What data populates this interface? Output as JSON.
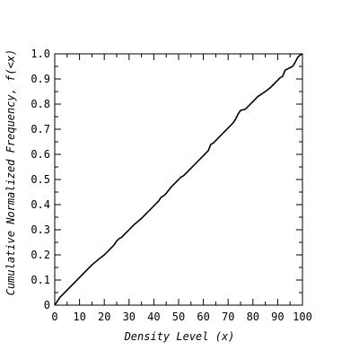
{
  "chart_data": {
    "type": "line",
    "title": "",
    "xlabel": "Density Level (x)",
    "ylabel": "Cumulative Normalized Frequency, f(<x)",
    "xlim": [
      0,
      100
    ],
    "ylim": [
      0,
      1.0
    ],
    "x_ticks": [
      "0",
      "10",
      "20",
      "30",
      "40",
      "50",
      "60",
      "70",
      "80",
      "90",
      "100"
    ],
    "y_ticks": [
      "0",
      "0.1",
      "0.2",
      "0.3",
      "0.4",
      "0.5",
      "0.6",
      "0.7",
      "0.8",
      "0.9",
      "1.0"
    ],
    "grid": false,
    "colors": {
      "line": "#000000",
      "axis": "#000000",
      "background": "#ffffff"
    },
    "series": [
      {
        "x": [
          0,
          1,
          2,
          3,
          5,
          8,
          10,
          12,
          15,
          18,
          20,
          22,
          24,
          25,
          26,
          27,
          28,
          30,
          32,
          35,
          38,
          40,
          42,
          43,
          44,
          45,
          47,
          50,
          51,
          52,
          55,
          58,
          60,
          62,
          63,
          64,
          65,
          67,
          70,
          72,
          73,
          74,
          75,
          77,
          80,
          82,
          85,
          87,
          88,
          89,
          90,
          91,
          92,
          93,
          95,
          96,
          97,
          98,
          99,
          100
        ],
        "y": [
          0.0,
          0.015,
          0.03,
          0.04,
          0.06,
          0.09,
          0.11,
          0.13,
          0.16,
          0.185,
          0.2,
          0.22,
          0.24,
          0.255,
          0.265,
          0.27,
          0.28,
          0.3,
          0.32,
          0.345,
          0.375,
          0.395,
          0.415,
          0.43,
          0.435,
          0.445,
          0.47,
          0.5,
          0.51,
          0.515,
          0.545,
          0.575,
          0.595,
          0.615,
          0.64,
          0.645,
          0.655,
          0.675,
          0.705,
          0.725,
          0.74,
          0.76,
          0.775,
          0.78,
          0.81,
          0.83,
          0.85,
          0.865,
          0.875,
          0.885,
          0.895,
          0.905,
          0.91,
          0.935,
          0.945,
          0.95,
          0.965,
          0.985,
          0.995,
          1.0
        ]
      }
    ]
  }
}
